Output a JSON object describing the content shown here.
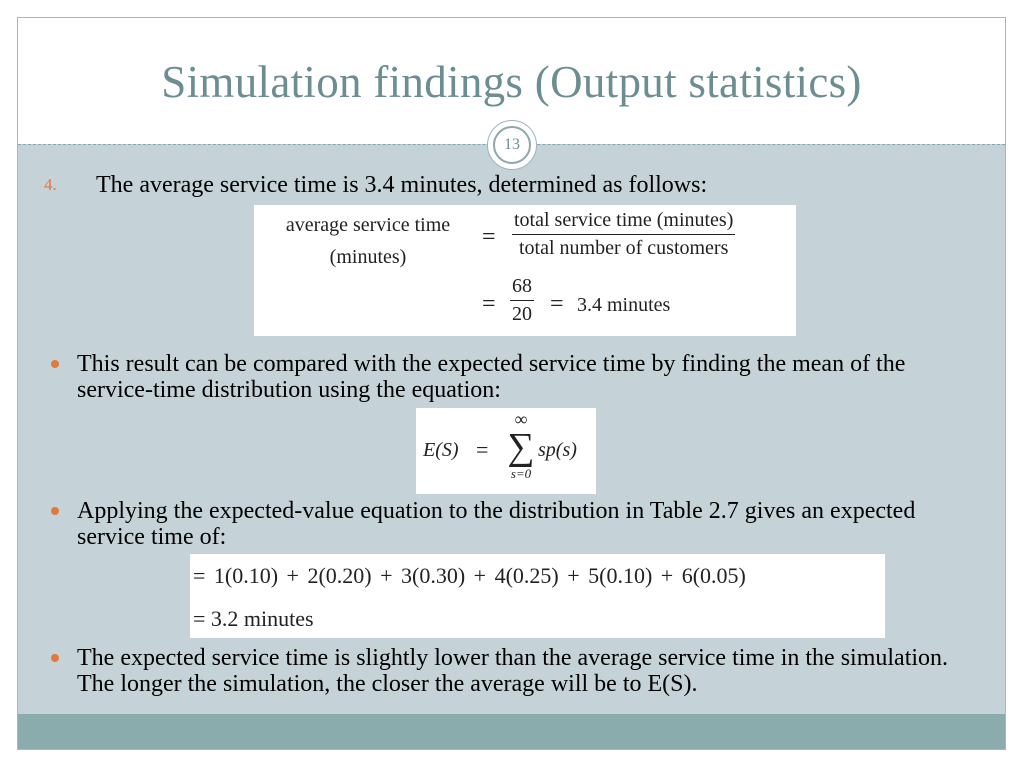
{
  "slide": {
    "title": "Simulation findings (Output statistics)",
    "number": "13"
  },
  "item4": {
    "marker": "4.",
    "text": "The average service time is 3.4 minutes, determined as follows:"
  },
  "eq1": {
    "lhs_line1": "average service time",
    "lhs_line2": "(minutes)",
    "eq": "=",
    "num": "total service time (minutes)",
    "den": "total number of customers",
    "eq2": "=",
    "num2": "68",
    "den2": "20",
    "eq3": "=",
    "result": "3.4 minutes"
  },
  "bullet1": {
    "text": "This result can be compared with the expected service time by finding the mean of the service-time distribution using the equation:"
  },
  "eq2": {
    "lhs": "E(S)",
    "eq": "=",
    "upper": "∞",
    "sigma": "∑",
    "lower": "s=0",
    "term": "sp(s)"
  },
  "bullet2": {
    "text": "Applying the expected-value equation to the distribution in Table 2.7 gives an expected service time of:"
  },
  "eq3": {
    "line1": "= 1(0.10) + 2(0.20) + 3(0.30) + 4(0.25) + 5(0.10) + 6(0.05)",
    "line2": "= 3.2 minutes"
  },
  "bullet3": {
    "text": "The expected service time is slightly lower than the average service time in the simulation. The longer the simulation, the closer the average will be to E(S)."
  },
  "colors": {
    "background": "#c5d2d8",
    "title": "#6c8e91",
    "accent": "#e1793c",
    "footer": "#8aacad"
  }
}
